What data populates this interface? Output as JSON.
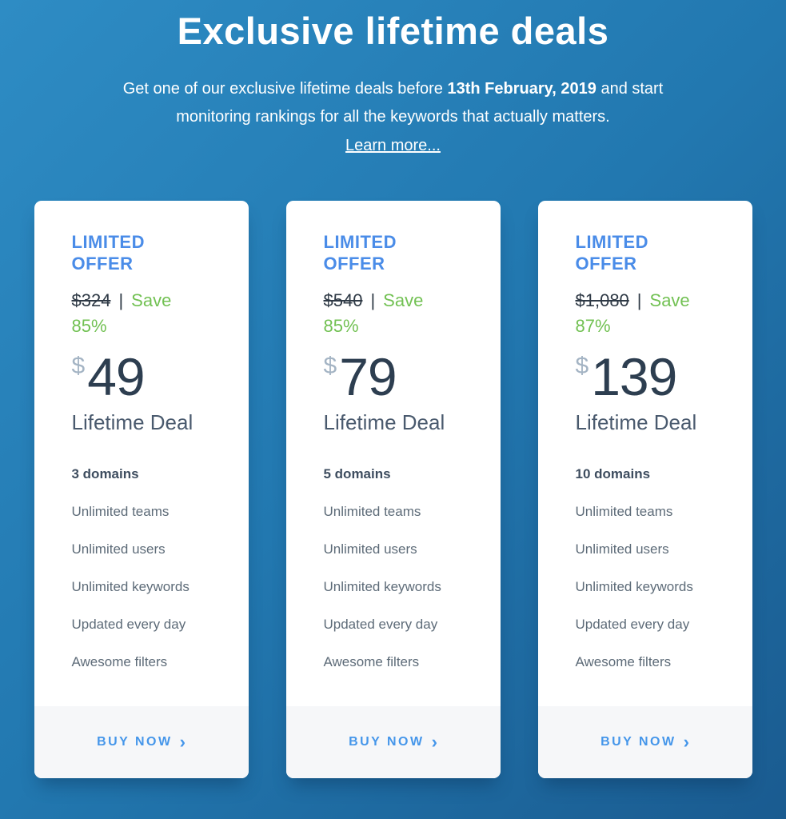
{
  "colors": {
    "bg-top": "#2e8cc4",
    "bg-mid": "#2278b0",
    "bg-bottom": "#1a5b90",
    "accent-blue": "#4a8ce8",
    "buy-blue": "#4596ea",
    "save-green": "#72c153",
    "price-dark": "#2d3e50",
    "old-price-dark": "#2f3a46",
    "caption-gray": "#4a5a6e",
    "feature-gray": "#5d6b78",
    "feature-dark": "#3e4d5f",
    "currency-gray": "#a4b4c4",
    "footer-bg": "#f6f7f9"
  },
  "header": {
    "title": "Exclusive lifetime deals",
    "subtitle_before": "Get one of our exclusive lifetime deals before ",
    "subtitle_deadline": "13th February, 2019",
    "subtitle_after": " and start monitoring rankings for all the keywords that actually matters.",
    "learn_more": "Learn more..."
  },
  "cards": [
    {
      "offer_label": "LIMITED OFFER",
      "old_price": "$324",
      "separator": "|",
      "save_label": "Save",
      "save_percent": "85%",
      "currency": "$",
      "price": "49",
      "price_caption": "Lifetime Deal",
      "features": [
        "3 domains",
        "Unlimited teams",
        "Unlimited users",
        "Unlimited keywords",
        "Updated every day",
        "Awesome filters"
      ],
      "buy_label": "BUY NOW",
      "buy_chevron": "›"
    },
    {
      "offer_label": "LIMITED OFFER",
      "old_price": "$540",
      "separator": "|",
      "save_label": "Save",
      "save_percent": "85%",
      "currency": "$",
      "price": "79",
      "price_caption": "Lifetime Deal",
      "features": [
        "5 domains",
        "Unlimited teams",
        "Unlimited users",
        "Unlimited keywords",
        "Updated every day",
        "Awesome filters"
      ],
      "buy_label": "BUY NOW",
      "buy_chevron": "›"
    },
    {
      "offer_label": "LIMITED OFFER",
      "old_price": "$1,080",
      "separator": "|",
      "save_label": "Save",
      "save_percent": "87%",
      "currency": "$",
      "price": "139",
      "price_caption": "Lifetime Deal",
      "features": [
        "10 domains",
        "Unlimited teams",
        "Unlimited users",
        "Unlimited keywords",
        "Updated every day",
        "Awesome filters"
      ],
      "buy_label": "BUY NOW",
      "buy_chevron": "›"
    }
  ]
}
